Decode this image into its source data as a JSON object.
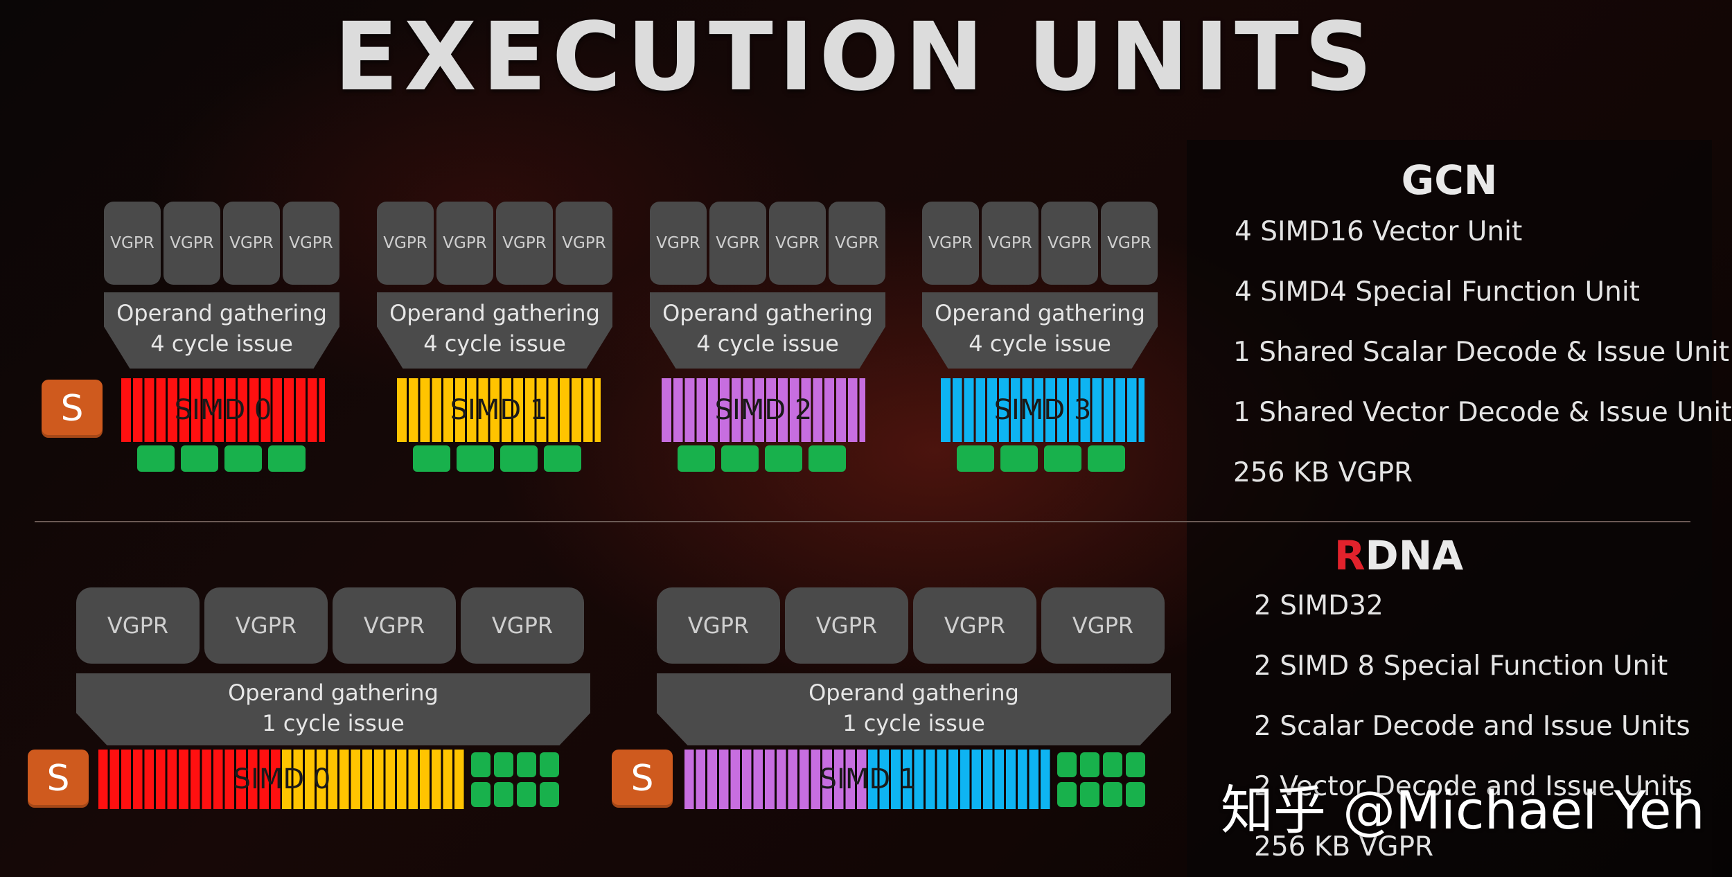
{
  "title": "EXECUTION UNITS",
  "gcn": {
    "blocks": [
      {
        "vgpr": [
          "VGPR",
          "VGPR",
          "VGPR",
          "VGPR"
        ],
        "operand_line1": "Operand gathering",
        "operand_line2": "4 cycle issue",
        "simd_label": "SIMD 0",
        "simd_color": "#ff1010"
      },
      {
        "vgpr": [
          "VGPR",
          "VGPR",
          "VGPR",
          "VGPR"
        ],
        "operand_line1": "Operand gathering",
        "operand_line2": "4 cycle issue",
        "simd_label": "SIMD 1",
        "simd_color": "#ffc400"
      },
      {
        "vgpr": [
          "VGPR",
          "VGPR",
          "VGPR",
          "VGPR"
        ],
        "operand_line1": "Operand gathering",
        "operand_line2": "4 cycle issue",
        "simd_label": "SIMD 2",
        "simd_color": "#c76ee0"
      },
      {
        "vgpr": [
          "VGPR",
          "VGPR",
          "VGPR",
          "VGPR"
        ],
        "operand_line1": "Operand gathering",
        "operand_line2": "4 cycle issue",
        "simd_label": "SIMD 3",
        "simd_color": "#0eb4f2"
      }
    ],
    "scalar_badge": "S"
  },
  "rdna": {
    "blocks": [
      {
        "vgpr": [
          "VGPR",
          "VGPR",
          "VGPR",
          "VGPR"
        ],
        "operand_line1": "Operand gathering",
        "operand_line2": "1 cycle issue",
        "simd_label": "SIMD 0",
        "color_left": "#ff1010",
        "color_right": "#ffc400",
        "scalar_badge": "S"
      },
      {
        "vgpr": [
          "VGPR",
          "VGPR",
          "VGPR",
          "VGPR"
        ],
        "operand_line1": "Operand gathering",
        "operand_line2": "1 cycle issue",
        "simd_label": "SIMD 1",
        "color_left": "#c76ee0",
        "color_right": "#0eb4f2",
        "scalar_badge": "S"
      }
    ]
  },
  "panel": {
    "gcn_heading": "GCN",
    "gcn_items": [
      "4 SIMD16 Vector Unit",
      "4 SIMD4 Special Function Unit",
      "1 Shared Scalar Decode & Issue Unit",
      "1 Shared Vector Decode & Issue Unit",
      "256 KB VGPR"
    ],
    "rdna_heading_first": "R",
    "rdna_heading_rest": "DNA",
    "rdna_items": [
      "2 SIMD32",
      "2 SIMD 8 Special Function Unit",
      "2 Scalar Decode and Issue Units",
      "2 Vector Decode and Issue Units",
      "256 KB VGPR"
    ]
  },
  "colors": {
    "accent_red": "#e2222c",
    "scalar": "#cf5a1e",
    "green_unit": "#18b14c"
  },
  "watermark": "知乎 @Michael Yeh"
}
